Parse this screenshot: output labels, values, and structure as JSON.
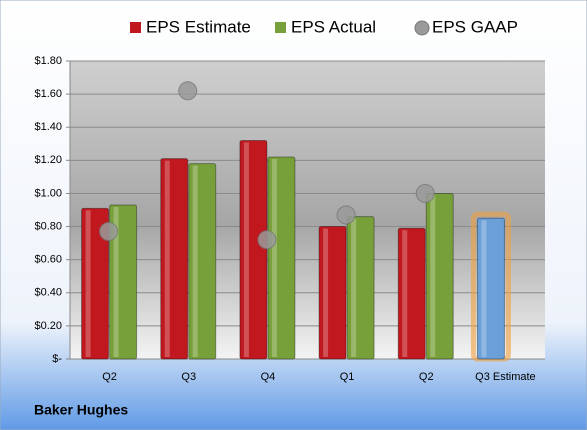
{
  "chart_data": {
    "type": "bar",
    "categories": [
      "Q2",
      "Q3",
      "Q4",
      "Q1",
      "Q2",
      "Q3 Estimate"
    ],
    "series": [
      {
        "name": "EPS Estimate",
        "color": "#c0181e",
        "kind": "bar",
        "values": [
          0.91,
          1.21,
          1.32,
          0.8,
          0.79,
          0.85
        ]
      },
      {
        "name": "EPS Actual",
        "color": "#77a03a",
        "kind": "bar",
        "values": [
          0.93,
          1.18,
          1.22,
          0.86,
          1.0,
          null
        ]
      },
      {
        "name": "EPS GAAP",
        "color": "#9a9a9a",
        "kind": "marker",
        "values": [
          0.77,
          1.62,
          0.72,
          0.87,
          1.0,
          null
        ]
      }
    ],
    "highlight": {
      "series": 0,
      "index": 5,
      "color": "#6a9fd8",
      "glow": "#f0a040"
    },
    "ylim": [
      0,
      1.8
    ],
    "yticks": [
      {
        "value": 0,
        "label": "$-"
      },
      {
        "value": 0.2,
        "label": "$0.20"
      },
      {
        "value": 0.4,
        "label": "$0.40"
      },
      {
        "value": 0.6,
        "label": "$0.60"
      },
      {
        "value": 0.8,
        "label": "$0.80"
      },
      {
        "value": 1.0,
        "label": "$1.00"
      },
      {
        "value": 1.2,
        "label": "$1.20"
      },
      {
        "value": 1.4,
        "label": "$1.40"
      },
      {
        "value": 1.6,
        "label": "$1.60"
      },
      {
        "value": 1.8,
        "label": "$1.80"
      }
    ],
    "grid": true,
    "caption": "Baker Hughes"
  }
}
